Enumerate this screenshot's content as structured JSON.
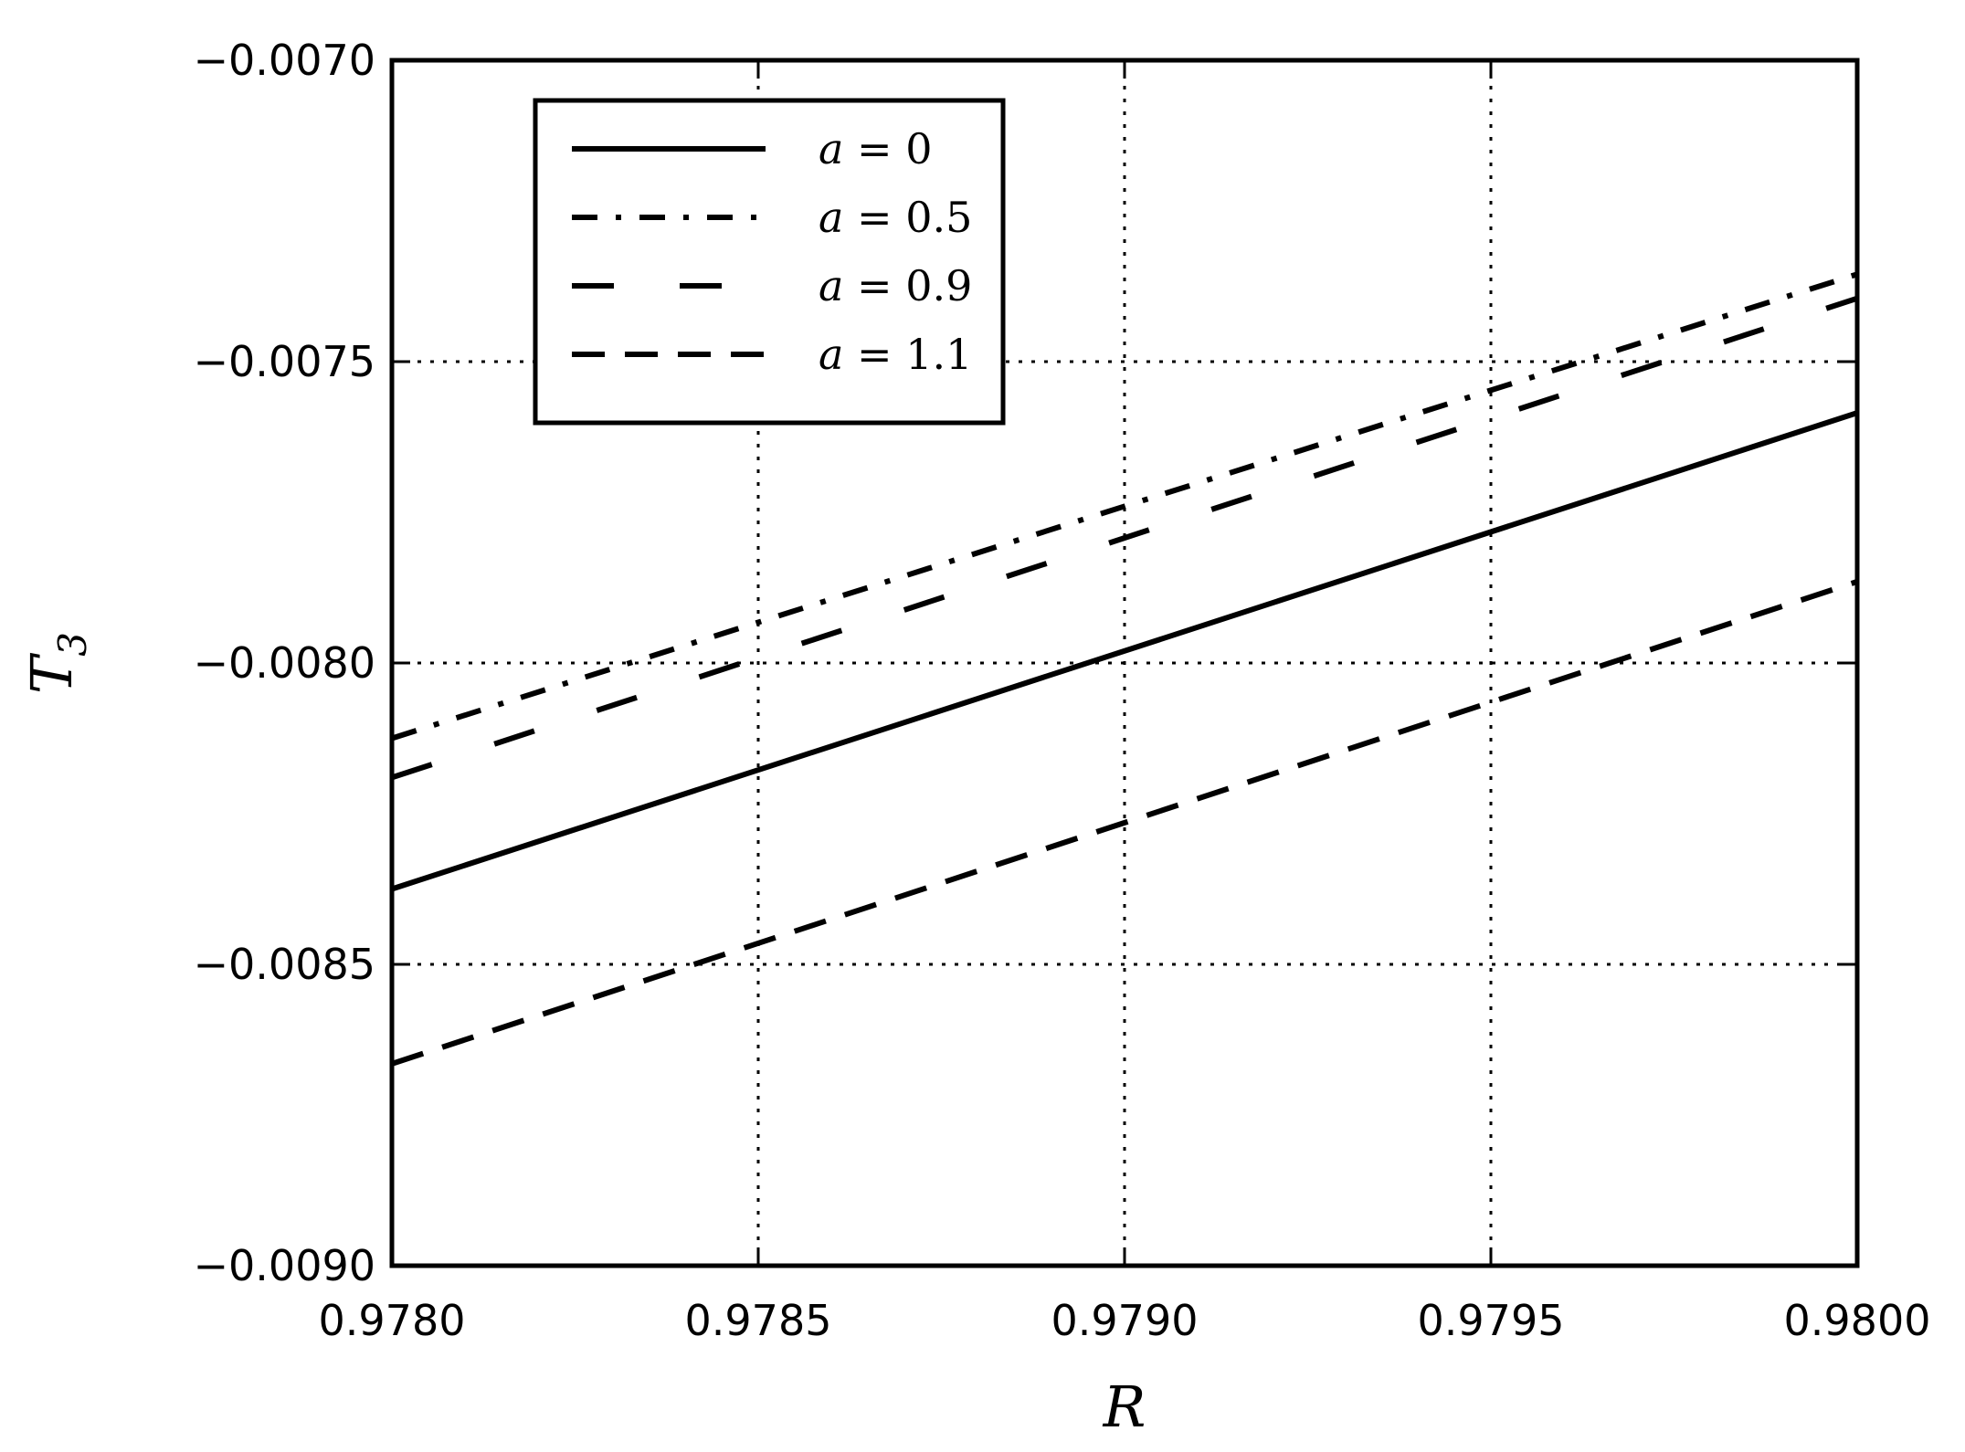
{
  "chart_data": {
    "type": "line",
    "title": "",
    "xlabel": "R",
    "ylabel": "T",
    "ylabel_subscript": "3",
    "xlim": [
      0.978,
      0.98
    ],
    "ylim": [
      -0.009,
      -0.007
    ],
    "xticks": [
      0.978,
      0.9785,
      0.979,
      0.9795,
      0.98
    ],
    "xtick_labels": [
      "0.9780",
      "0.9785",
      "0.9790",
      "0.9795",
      "0.9800"
    ],
    "yticks": [
      -0.007,
      -0.0075,
      -0.008,
      -0.0085,
      -0.009
    ],
    "ytick_labels": [
      "−0.0070",
      "−0.0075",
      "−0.0080",
      "−0.0085",
      "−0.0090"
    ],
    "grid": true,
    "grid_style": "dotted",
    "legend_position": "upper-left",
    "series": [
      {
        "name": "a = 0",
        "linestyle": "solid",
        "color": "#000000",
        "x": [
          0.978,
          0.98
        ],
        "y": [
          -0.008375,
          -0.007585
        ]
      },
      {
        "name": "a = 0.5",
        "linestyle": "dashdot",
        "color": "#000000",
        "x": [
          0.978,
          0.98
        ],
        "y": [
          -0.008125,
          -0.007355
        ]
      },
      {
        "name": "a = 0.9",
        "linestyle": "longdash-gap",
        "color": "#000000",
        "x": [
          0.978,
          0.98
        ],
        "y": [
          -0.00819,
          -0.007395
        ]
      },
      {
        "name": "a = 1.1",
        "linestyle": "dashed",
        "color": "#000000",
        "x": [
          0.978,
          0.98
        ],
        "y": [
          -0.008665,
          -0.007865
        ]
      }
    ]
  }
}
